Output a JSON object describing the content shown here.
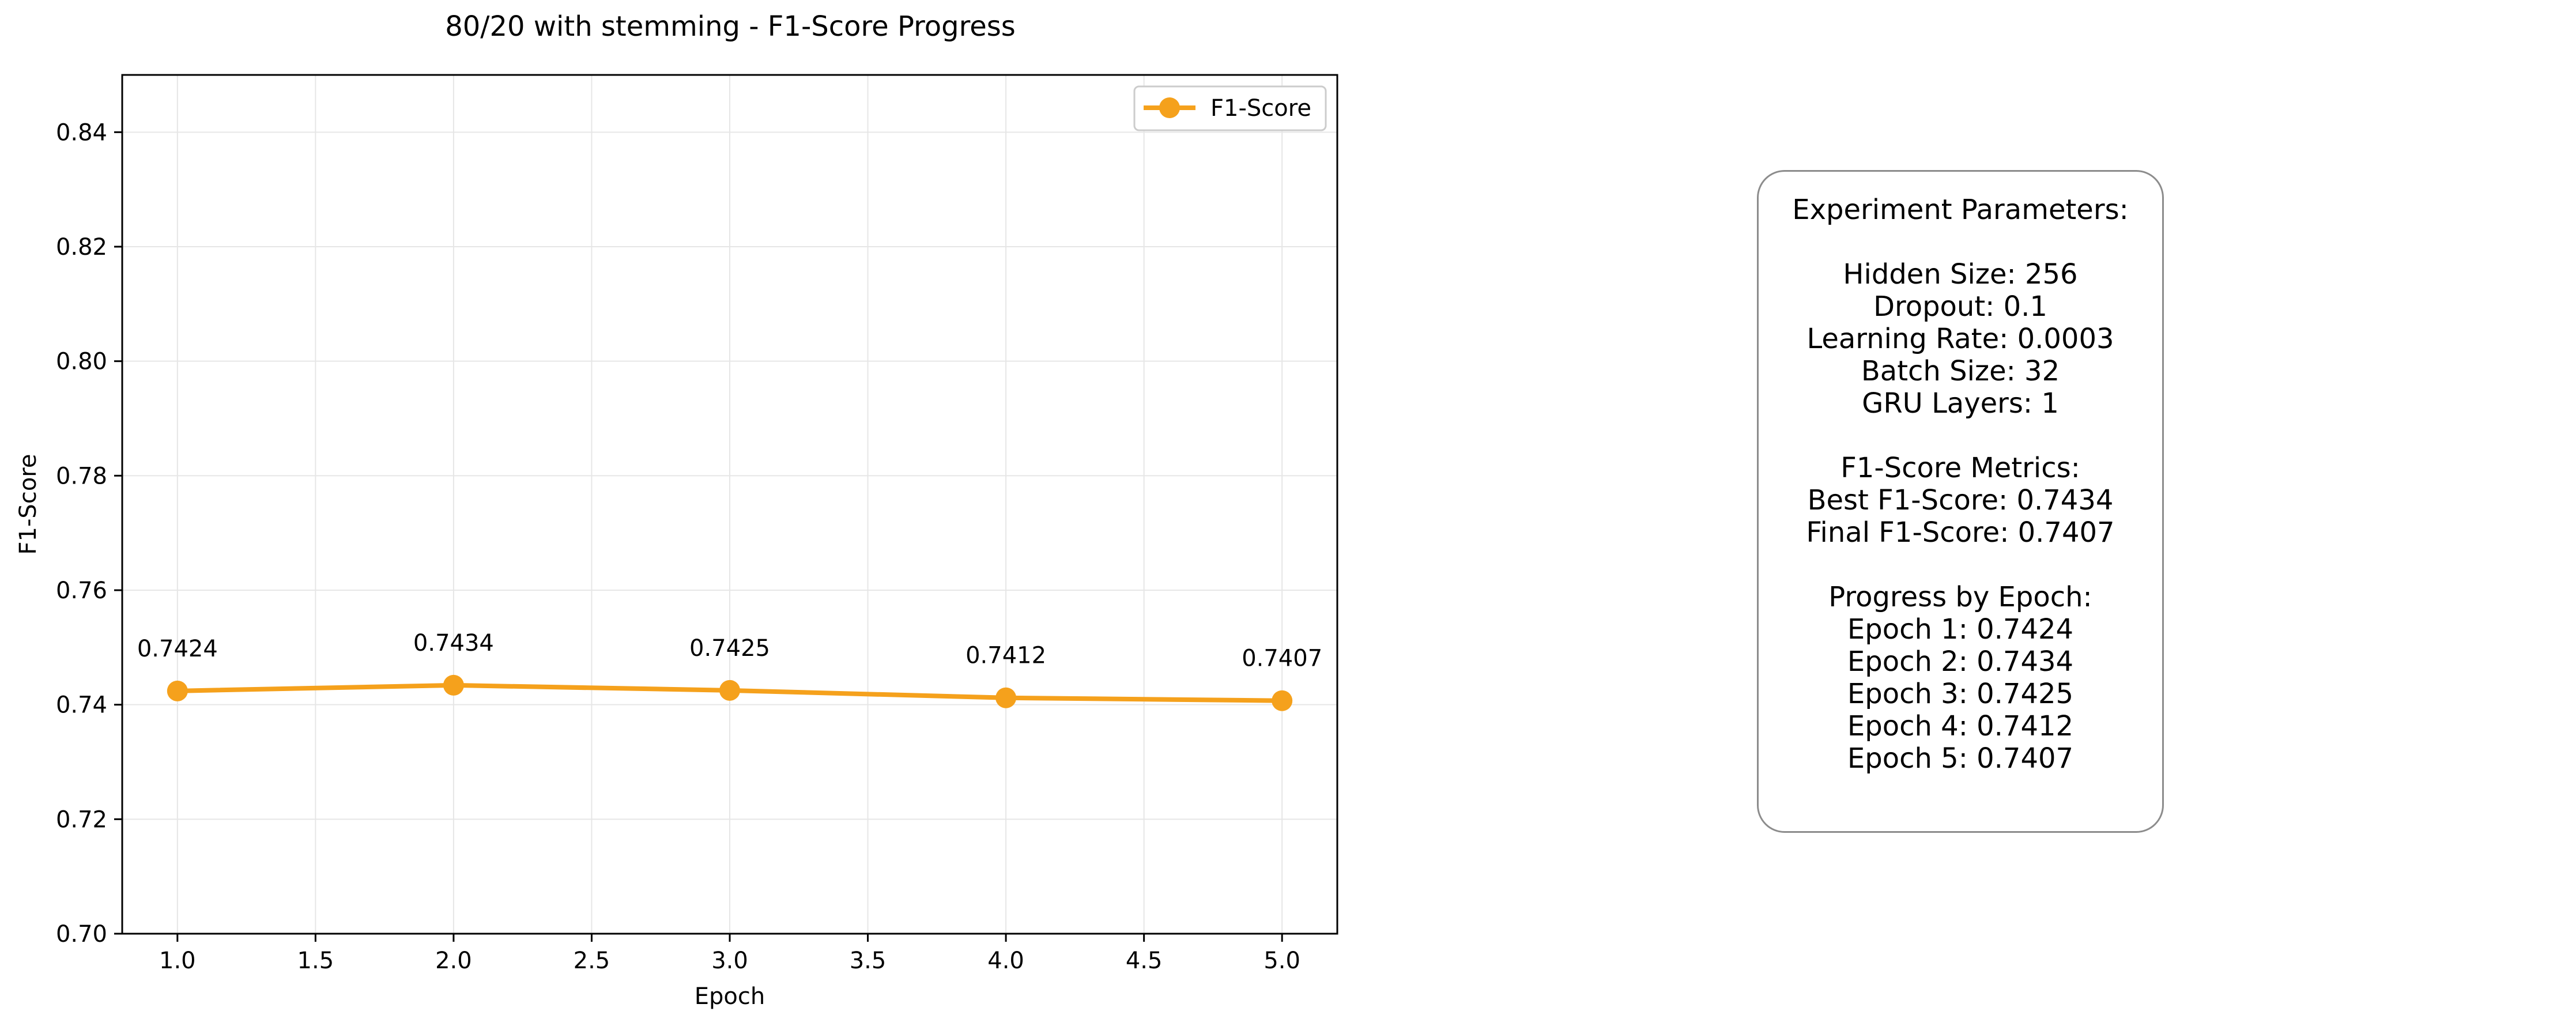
{
  "chart_data": {
    "type": "line",
    "title": "80/20 with stemming - F1-Score Progress",
    "xlabel": "Epoch",
    "ylabel": "F1-Score",
    "xlim": [
      0.8,
      5.2
    ],
    "ylim": [
      0.7,
      0.85
    ],
    "xticks": [
      "1.0",
      "1.5",
      "2.0",
      "2.5",
      "3.0",
      "3.5",
      "4.0",
      "4.5",
      "5.0"
    ],
    "yticks": [
      "0.70",
      "0.72",
      "0.74",
      "0.76",
      "0.78",
      "0.80",
      "0.82",
      "0.84"
    ],
    "grid": true,
    "legend_position": "top-right",
    "x": [
      1,
      2,
      3,
      4,
      5
    ],
    "series": [
      {
        "name": "F1-Score",
        "color": "#f5a11c",
        "values": [
          0.7424,
          0.7434,
          0.7425,
          0.7412,
          0.7407
        ],
        "labels": [
          "0.7424",
          "0.7434",
          "0.7425",
          "0.7412",
          "0.7407"
        ]
      }
    ]
  },
  "info_box": {
    "parameters_title": "Experiment Parameters:",
    "hidden_size": "Hidden Size: 256",
    "dropout": "Dropout: 0.1",
    "learning_rate": "Learning Rate: 0.0003",
    "batch_size": "Batch Size: 32",
    "gru_layers": "GRU Layers: 1",
    "metrics_title": "F1-Score Metrics:",
    "best_f1": "Best F1-Score: 0.7434",
    "final_f1": "Final F1-Score: 0.7407",
    "progress_title": "Progress by Epoch:",
    "epochs": [
      "Epoch 1: 0.7424",
      "Epoch 2: 0.7434",
      "Epoch 3: 0.7425",
      "Epoch 4: 0.7412",
      "Epoch 5: 0.7407"
    ]
  }
}
